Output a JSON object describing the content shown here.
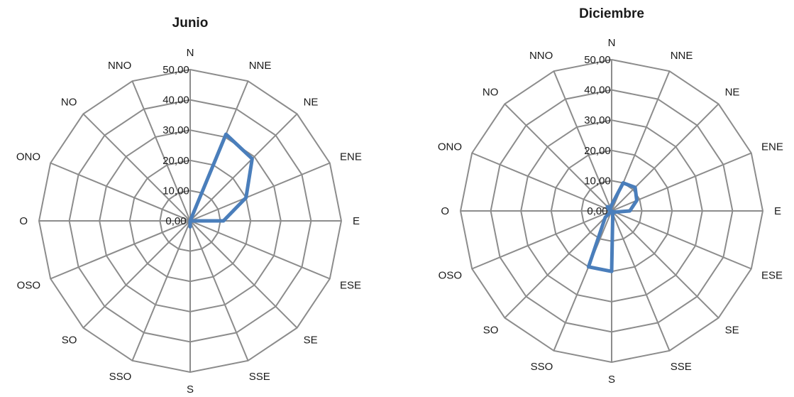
{
  "chart_data": [
    {
      "type": "radar",
      "title": "Junio",
      "directions": [
        "N",
        "NNE",
        "NE",
        "ENE",
        "E",
        "ESE",
        "SE",
        "SSE",
        "S",
        "SSO",
        "SO",
        "OSO",
        "O",
        "ONO",
        "NO",
        "NNO"
      ],
      "tick_labels": [
        "0,00",
        "10,00",
        "20,00",
        "30,00",
        "40,00",
        "50,00"
      ],
      "rlim": [
        0,
        50
      ],
      "grid": true,
      "series": [
        {
          "values": [
            0,
            31,
            29,
            20,
            11,
            0,
            0,
            0,
            2,
            0,
            0,
            0,
            0,
            0,
            0,
            0
          ],
          "color": "#4a7ebb"
        }
      ]
    },
    {
      "type": "radar",
      "title": "Diciembre",
      "directions": [
        "N",
        "NNE",
        "NE",
        "ENE",
        "E",
        "ESE",
        "SE",
        "SSE",
        "S",
        "SSO",
        "SO",
        "OSO",
        "O",
        "ONO",
        "NO",
        "NNO"
      ],
      "tick_labels": [
        "0,00",
        "10,00",
        "20,00",
        "30,00",
        "40,00",
        "50,00"
      ],
      "rlim": [
        0,
        50
      ],
      "grid": true,
      "series": [
        {
          "values": [
            2,
            10,
            11,
            9,
            6,
            1,
            0,
            1,
            20,
            20,
            3,
            0,
            0,
            1,
            2,
            1
          ],
          "color": "#4a7ebb"
        }
      ]
    }
  ]
}
